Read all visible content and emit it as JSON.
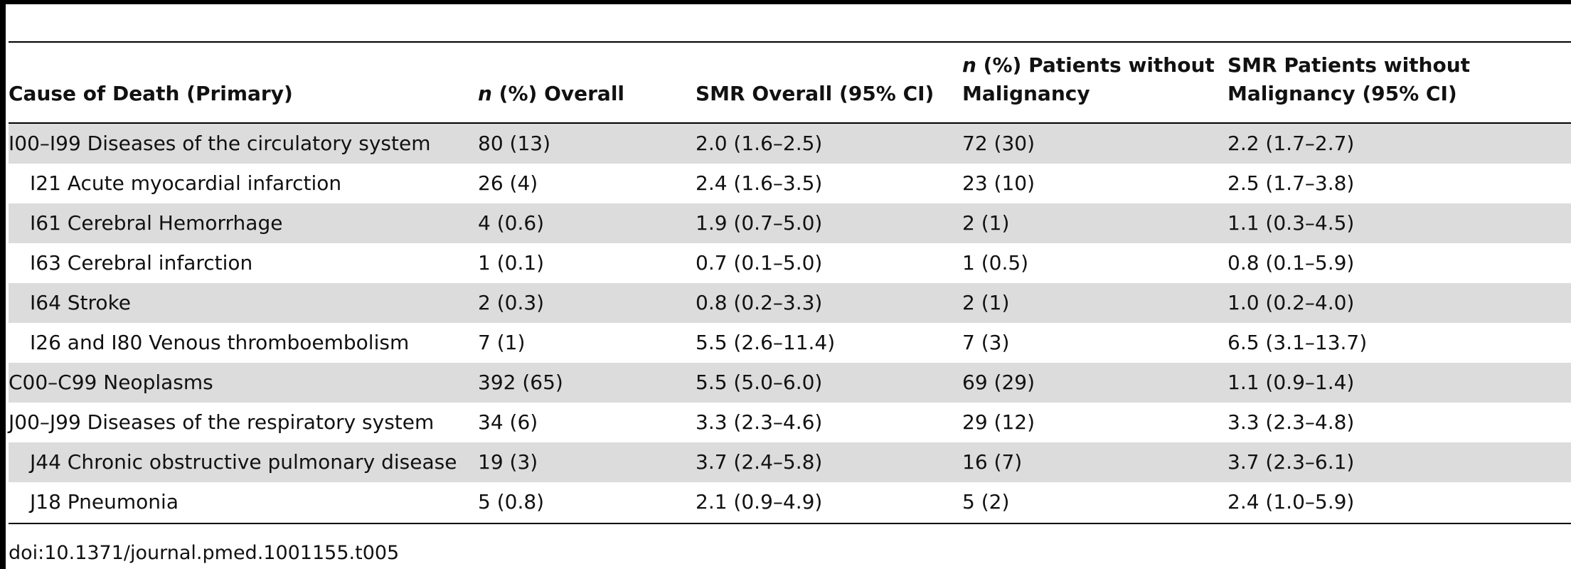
{
  "table": {
    "headers": [
      {
        "prefix": "",
        "italic": "",
        "suffix": "Cause of Death (Primary)"
      },
      {
        "prefix": "",
        "italic": "n",
        "suffix": " (%) Overall"
      },
      {
        "prefix": "",
        "italic": "",
        "suffix": "SMR Overall (95% CI)"
      },
      {
        "prefix": "",
        "italic": "n",
        "suffix": " (%) Patients without Malignancy"
      },
      {
        "prefix": "",
        "italic": "",
        "suffix": "SMR Patients without Malignancy (95% CI)"
      }
    ],
    "rows": [
      {
        "indent": false,
        "cells": [
          "I00–I99 Diseases of the circulatory system",
          "80 (13)",
          "2.0 (1.6–2.5)",
          "72 (30)",
          "2.2 (1.7–2.7)"
        ]
      },
      {
        "indent": true,
        "cells": [
          "I21 Acute myocardial infarction",
          "26 (4)",
          "2.4 (1.6–3.5)",
          "23 (10)",
          "2.5 (1.7–3.8)"
        ]
      },
      {
        "indent": true,
        "cells": [
          "I61 Cerebral Hemorrhage",
          "4 (0.6)",
          "1.9 (0.7–5.0)",
          "2 (1)",
          "1.1 (0.3–4.5)"
        ]
      },
      {
        "indent": true,
        "cells": [
          "I63 Cerebral infarction",
          "1 (0.1)",
          "0.7 (0.1–5.0)",
          "1 (0.5)",
          "0.8 (0.1–5.9)"
        ]
      },
      {
        "indent": true,
        "cells": [
          "I64 Stroke",
          "2 (0.3)",
          "0.8 (0.2–3.3)",
          "2 (1)",
          "1.0 (0.2–4.0)"
        ]
      },
      {
        "indent": true,
        "cells": [
          "I26 and I80 Venous thromboembolism",
          "7 (1)",
          "5.5 (2.6–11.4)",
          "7 (3)",
          "6.5 (3.1–13.7)"
        ]
      },
      {
        "indent": false,
        "cells": [
          "C00–C99 Neoplasms",
          "392 (65)",
          "5.5 (5.0–6.0)",
          "69 (29)",
          "1.1 (0.9–1.4)"
        ]
      },
      {
        "indent": false,
        "cells": [
          "J00–J99 Diseases of the respiratory system",
          "34 (6)",
          "3.3 (2.3–4.6)",
          "29 (12)",
          "3.3 (2.3–4.8)"
        ]
      },
      {
        "indent": true,
        "cells": [
          "J44 Chronic obstructive pulmonary disease",
          "19 (3)",
          "3.7 (2.4–5.8)",
          "16 (7)",
          "3.7 (2.3–6.1)"
        ]
      },
      {
        "indent": true,
        "cells": [
          "J18 Pneumonia",
          "5 (0.8)",
          "2.1 (0.9–4.9)",
          "5 (2)",
          "2.4 (1.0–5.9)"
        ]
      }
    ],
    "shading_color": "#dcdcdc"
  },
  "footnote": "doi:10.1371/journal.pmed.1001155.t005"
}
